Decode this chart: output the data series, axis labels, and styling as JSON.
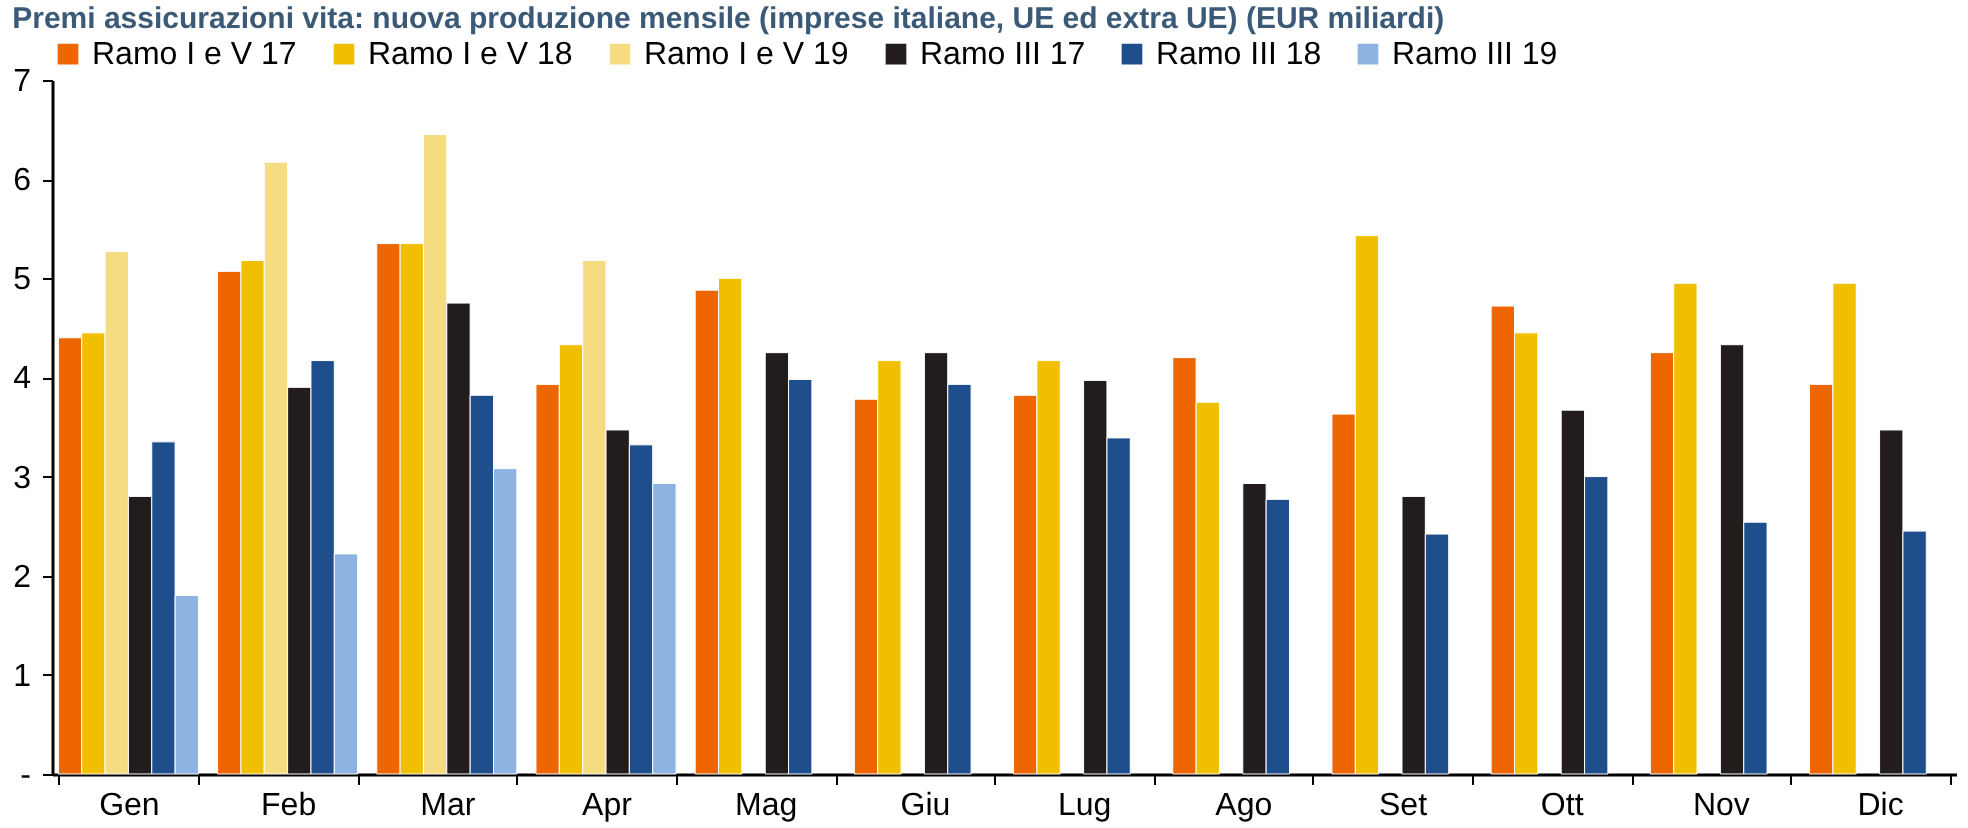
{
  "chart_data": {
    "type": "bar",
    "title": "Premi assicurazioni vita: nuova produzione mensile (imprese italiane, UE ed extra UE) (EUR miliardi)",
    "categories": [
      "Gen",
      "Feb",
      "Mar",
      "Apr",
      "Mag",
      "Giu",
      "Lug",
      "Ago",
      "Set",
      "Ott",
      "Nov",
      "Dic"
    ],
    "series": [
      {
        "name": "Ramo I e V 17",
        "color": "#ee6600",
        "values": [
          4.4,
          5.07,
          5.35,
          3.93,
          4.88,
          3.78,
          3.82,
          4.2,
          3.63,
          4.72,
          4.25,
          3.93
        ]
      },
      {
        "name": "Ramo I e V 18",
        "color": "#f0c000",
        "values": [
          4.45,
          5.18,
          5.35,
          4.33,
          5.0,
          4.17,
          4.17,
          3.75,
          5.43,
          4.45,
          4.95,
          4.95
        ]
      },
      {
        "name": "Ramo I e V 19",
        "color": "#f5dc80",
        "values": [
          5.27,
          6.17,
          6.45,
          5.18,
          null,
          null,
          null,
          null,
          null,
          null,
          null,
          null
        ]
      },
      {
        "name": "Ramo III 17",
        "color": "#231c1d",
        "values": [
          2.8,
          3.9,
          4.75,
          3.47,
          4.25,
          4.25,
          3.97,
          2.93,
          2.8,
          3.67,
          4.33,
          3.47
        ]
      },
      {
        "name": "Ramo III 18",
        "color": "#1f4e8c",
        "values": [
          3.35,
          4.17,
          3.82,
          3.32,
          3.98,
          3.93,
          3.39,
          2.77,
          2.42,
          3.0,
          2.54,
          2.45
        ]
      },
      {
        "name": "Ramo III 19",
        "color": "#8db3e2",
        "values": [
          1.8,
          2.22,
          3.08,
          2.93,
          null,
          null,
          null,
          null,
          null,
          null,
          null,
          null
        ]
      }
    ],
    "ylim": [
      0,
      7
    ],
    "yticks": [
      {
        "value": 0,
        "label": "-"
      },
      1,
      2,
      3,
      4,
      5,
      6,
      7
    ],
    "grid": false,
    "legend": "top"
  }
}
